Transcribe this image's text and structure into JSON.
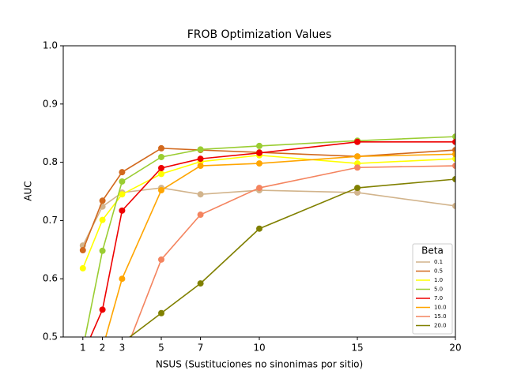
{
  "chart_data": {
    "type": "line",
    "title": "FROB Optimization Values",
    "x_label": "NSUS (Sustituciones no sinonimas por sitio)",
    "y_label": "AUC",
    "x": [
      1,
      2,
      3,
      5,
      7,
      10,
      15,
      20
    ],
    "xlim": [
      0,
      20
    ],
    "xticks": [
      1,
      2,
      3,
      5,
      7,
      10,
      15,
      20
    ],
    "ylim": [
      0.5,
      1.0
    ],
    "yticks": [
      {
        "value": 0.5,
        "label": "0.5"
      },
      0.6,
      0.7,
      0.8,
      0.9,
      {
        "value": 1.0,
        "label": "1.0"
      }
    ],
    "legend_title": "Beta",
    "legend_position": "lower right",
    "series": [
      {
        "name": "0.1",
        "color": "#d2b48c",
        "values": [
          0.657,
          0.724,
          0.748,
          0.756,
          0.745,
          0.752,
          0.748,
          0.725
        ]
      },
      {
        "name": "0.5",
        "color": "#d2691e",
        "values": [
          0.649,
          0.734,
          0.783,
          0.824,
          0.821,
          0.817,
          0.81,
          0.821
        ]
      },
      {
        "name": "1.0",
        "color": "#ffff00",
        "values": [
          0.618,
          0.701,
          0.745,
          0.78,
          0.801,
          0.812,
          0.798,
          0.806
        ]
      },
      {
        "name": "5.0",
        "color": "#9acd32",
        "values": [
          0.48,
          0.648,
          0.767,
          0.809,
          0.822,
          0.828,
          0.837,
          0.844
        ]
      },
      {
        "name": "7.0",
        "color": "#ee0000",
        "values": [
          0.47,
          0.547,
          0.717,
          0.79,
          0.806,
          0.816,
          0.835,
          0.835
        ]
      },
      {
        "name": "10.0",
        "color": "#ffa500",
        "values": [
          null,
          0.48,
          0.6,
          0.752,
          0.794,
          0.798,
          0.81,
          0.814
        ]
      },
      {
        "name": "15.0",
        "color": "#f4845f",
        "values": [
          null,
          null,
          0.46,
          0.633,
          0.71,
          0.756,
          0.791,
          0.794
        ]
      },
      {
        "name": "20.0",
        "color": "#808000",
        "values": [
          null,
          null,
          0.49,
          0.541,
          0.592,
          0.686,
          0.756,
          0.771
        ]
      }
    ]
  }
}
